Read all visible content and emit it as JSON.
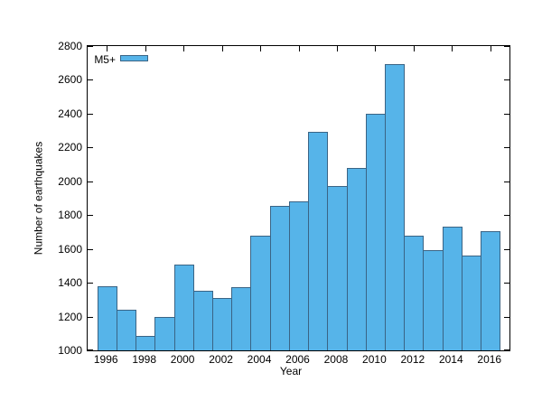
{
  "chart_data": {
    "type": "bar",
    "title": "",
    "xlabel": "Year",
    "ylabel": "Number of earthquakes",
    "legend": [
      {
        "label": "M5+",
        "color": "#56b4e9"
      }
    ],
    "legend_position": "top-left-inside",
    "grid": false,
    "categories": [
      1996,
      1997,
      1998,
      1999,
      2000,
      2001,
      2002,
      2003,
      2004,
      2005,
      2006,
      2007,
      2008,
      2009,
      2010,
      2011,
      2012,
      2013,
      2014,
      2015,
      2016
    ],
    "values": [
      1380,
      1240,
      1085,
      1195,
      1505,
      1355,
      1310,
      1375,
      1680,
      1855,
      1880,
      2290,
      1970,
      2080,
      2400,
      2695,
      1680,
      1595,
      1730,
      1560,
      1705
    ],
    "xlim": [
      1995,
      2017
    ],
    "ylim": [
      1000,
      2800
    ],
    "x_ticks": [
      1996,
      1998,
      2000,
      2002,
      2004,
      2006,
      2008,
      2010,
      2012,
      2014,
      2016
    ],
    "y_ticks": [
      1000,
      1200,
      1400,
      1600,
      1800,
      2000,
      2200,
      2400,
      2600,
      2800
    ]
  },
  "colors": {
    "background": "#ffffff",
    "bar_fill": "#56b4e9",
    "bar_border": "#3a6485",
    "axis": "#000000",
    "text": "#000000"
  }
}
